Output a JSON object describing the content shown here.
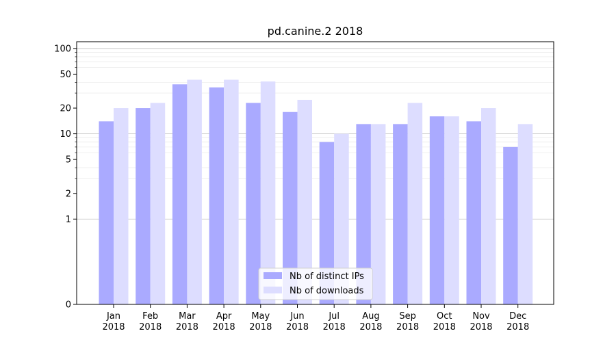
{
  "chart_data": {
    "type": "bar",
    "title": "pd.canine.2 2018",
    "xlabel": "",
    "ylabel": "",
    "yscale": "symlog",
    "ylim": [
      0,
      120
    ],
    "yticks": [
      0,
      1,
      2,
      5,
      10,
      20,
      50,
      100
    ],
    "grid": "horizontal",
    "legend_position": "bottom-center",
    "categories": [
      [
        "Jan",
        "2018"
      ],
      [
        "Feb",
        "2018"
      ],
      [
        "Mar",
        "2018"
      ],
      [
        "Apr",
        "2018"
      ],
      [
        "May",
        "2018"
      ],
      [
        "Jun",
        "2018"
      ],
      [
        "Jul",
        "2018"
      ],
      [
        "Aug",
        "2018"
      ],
      [
        "Sep",
        "2018"
      ],
      [
        "Oct",
        "2018"
      ],
      [
        "Nov",
        "2018"
      ],
      [
        "Dec",
        "2018"
      ]
    ],
    "series": [
      {
        "name": "Nb of distinct IPs",
        "color": "#aaaaff",
        "values": [
          14,
          20,
          38,
          35,
          23,
          18,
          8,
          13,
          13,
          16,
          14,
          7
        ]
      },
      {
        "name": "Nb of downloads",
        "color": "#ddddff",
        "values": [
          20,
          23,
          43,
          43,
          41,
          25,
          10,
          13,
          23,
          16,
          20,
          13
        ]
      }
    ]
  }
}
